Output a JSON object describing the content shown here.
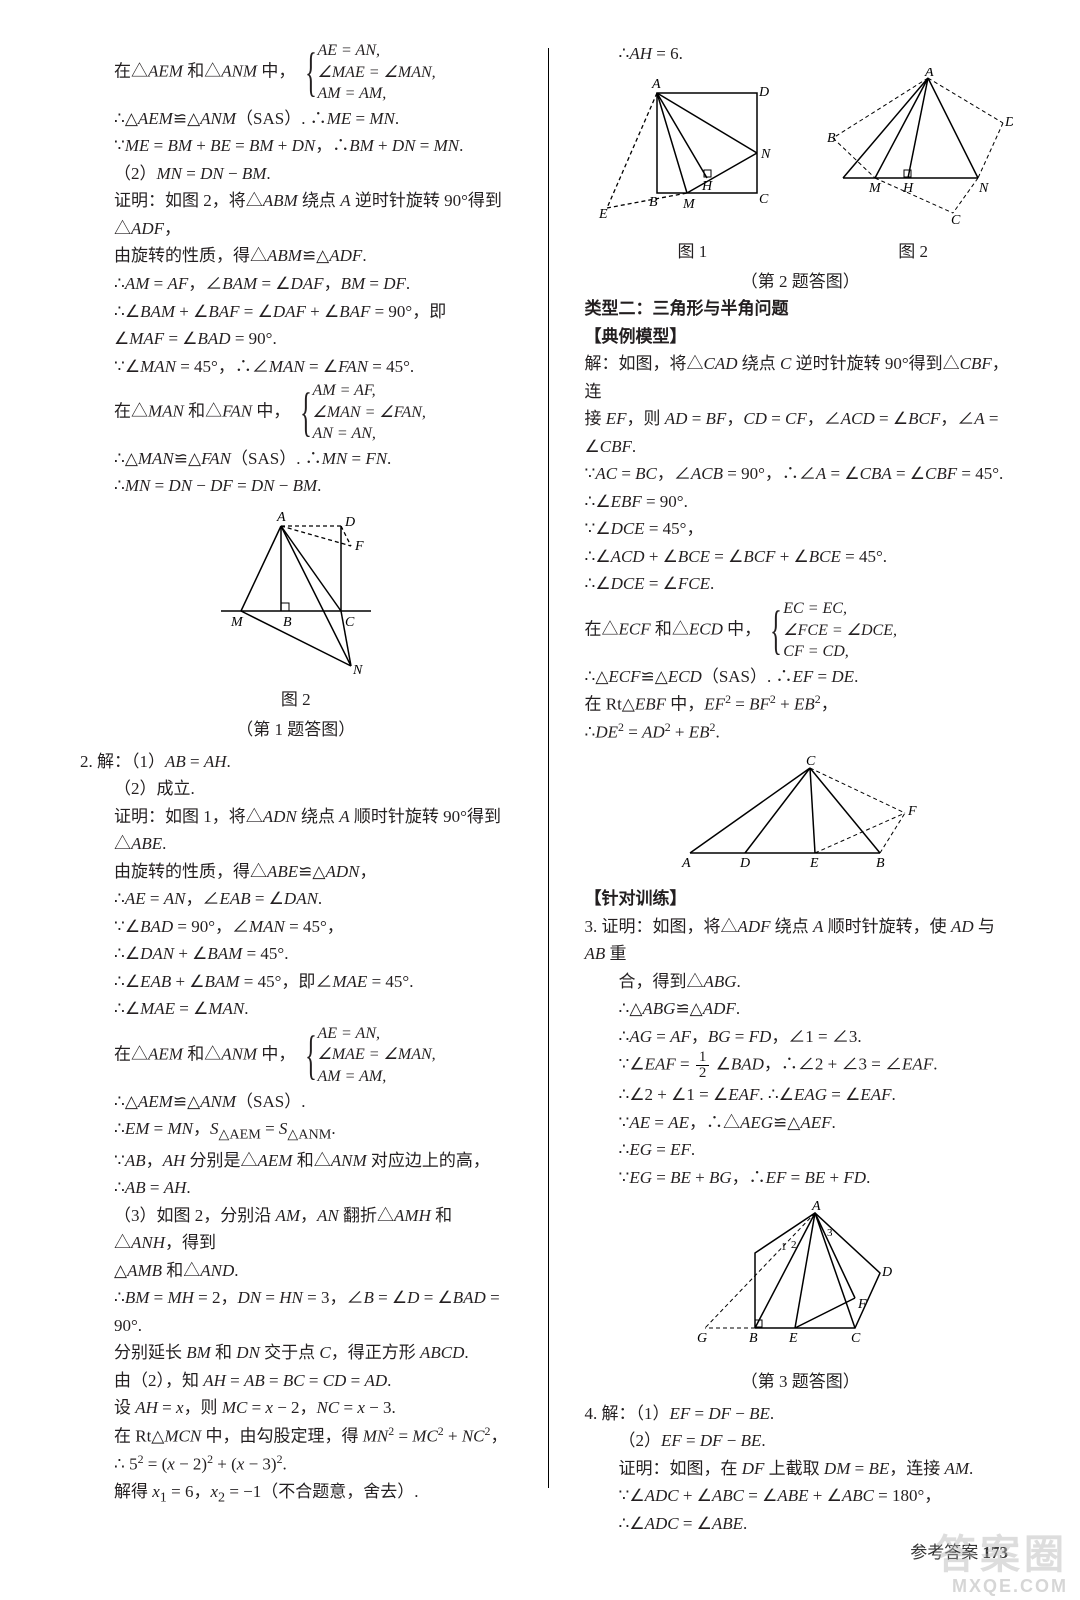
{
  "footer": {
    "label": "参考答案",
    "page": "173"
  },
  "watermark": {
    "main": "答案圈",
    "sub": "MXQE.COM"
  },
  "left": {
    "l1_pre": "在△<span class='it'>AEM</span> 和△<span class='it'>ANM</span> 中，",
    "brace1": [
      "AE = AN,",
      "∠MAE = ∠MAN,",
      "AM = AM,"
    ],
    "l2": "∴△<span class='it'>AEM</span>≌△<span class='it'>ANM</span>（SAS）. ∴<span class='it'>ME</span> = <span class='it'>MN</span>.",
    "l3": "∵<span class='it'>ME</span> = <span class='it'>BM</span> + <span class='it'>BE</span> = <span class='it'>BM</span> + <span class='it'>DN</span>，∴<span class='it'>BM</span> + <span class='it'>DN</span> = <span class='it'>MN</span>.",
    "l4": "（2）<span class='it'>MN</span> = <span class='it'>DN</span> − <span class='it'>BM</span>.",
    "l5": "证明：如图 2，将△<span class='it'>ABM</span> 绕点 <span class='it'>A</span> 逆时针旋转 90°得到△<span class='it'>ADF</span>，",
    "l6": "由旋转的性质，得△<span class='it'>ABM</span>≌△<span class='it'>ADF</span>.",
    "l7": "∴<span class='it'>AM</span> = <span class='it'>AF</span>，∠<span class='it'>BAM</span> = ∠<span class='it'>DAF</span>，<span class='it'>BM</span> = <span class='it'>DF</span>.",
    "l8": "∴∠<span class='it'>BAM</span> + ∠<span class='it'>BAF</span> = ∠<span class='it'>DAF</span> + ∠<span class='it'>BAF</span> = 90°，即",
    "l9": "∠<span class='it'>MAF</span> = ∠<span class='it'>BAD</span> = 90°.",
    "l10": "∵∠<span class='it'>MAN</span> = 45°，∴∠<span class='it'>MAN</span> = ∠<span class='it'>FAN</span> = 45°.",
    "l11_pre": "在△<span class='it'>MAN</span> 和△<span class='it'>FAN</span> 中，",
    "brace2": [
      "AM = AF,",
      "∠MAN = ∠FAN,",
      "AN = AN,"
    ],
    "l12": "∴△<span class='it'>MAN</span>≌△<span class='it'>FAN</span>（SAS）. ∴<span class='it'>MN</span> = <span class='it'>FN</span>.",
    "l13": "∴<span class='it'>MN</span> = <span class='it'>DN</span> − <span class='it'>DF</span> = <span class='it'>DN</span> − <span class='it'>BM</span>.",
    "fig1_label": "图 2",
    "fig1_cap": "（第 1 题答图）",
    "l14": "2. 解：（1）<span class='it'>AB</span> = <span class='it'>AH</span>.",
    "l15": "（2）成立.",
    "l16": "证明：如图 1，将△<span class='it'>ADN</span> 绕点 <span class='it'>A</span> 顺时针旋转 90°得到△<span class='it'>ABE</span>.",
    "l17": "由旋转的性质，得△<span class='it'>ABE</span>≌△<span class='it'>ADN</span>，",
    "l18": "∴<span class='it'>AE</span> = <span class='it'>AN</span>，∠<span class='it'>EAB</span> = ∠<span class='it'>DAN</span>.",
    "l19": "∵∠<span class='it'>BAD</span> = 90°，∠<span class='it'>MAN</span> = 45°，",
    "l20": "∴∠<span class='it'>DAN</span> + ∠<span class='it'>BAM</span> = 45°.",
    "l21": "∴∠<span class='it'>EAB</span> + ∠<span class='it'>BAM</span> = 45°，即∠<span class='it'>MAE</span> = 45°.",
    "l22": "∴∠<span class='it'>MAE</span> = ∠<span class='it'>MAN</span>.",
    "l23_pre": "在△<span class='it'>AEM</span> 和△<span class='it'>ANM</span> 中，",
    "brace3": [
      "AE = AN,",
      "∠MAE = ∠MAN,",
      "AM = AM,"
    ],
    "l24": "∴△<span class='it'>AEM</span>≌△<span class='it'>ANM</span>（SAS）.",
    "l25": "∴<span class='it'>EM</span> = <span class='it'>MN</span>，<span class='it'>S</span><sub>△AEM</sub> = <span class='it'>S</span><sub>△ANM</sub>.",
    "l26": "∵<span class='it'>AB</span>，<span class='it'>AH</span> 分别是△<span class='it'>AEM</span> 和△<span class='it'>ANM</span> 对应边上的高，",
    "l27": "∴<span class='it'>AB</span> = <span class='it'>AH</span>.",
    "l28": "（3）如图 2，分别沿 <span class='it'>AM</span>，<span class='it'>AN</span> 翻折△<span class='it'>AMH</span> 和△<span class='it'>ANH</span>，得到",
    "l29": "△<span class='it'>AMB</span> 和△<span class='it'>AND</span>.",
    "l30": "∴<span class='it'>BM</span> = <span class='it'>MH</span> = 2，<span class='it'>DN</span> = <span class='it'>HN</span> = 3，∠<span class='it'>B</span> = ∠<span class='it'>D</span> = ∠<span class='it'>BAD</span> = 90°.",
    "l31": "分别延长 <span class='it'>BM</span> 和 <span class='it'>DN</span> 交于点 <span class='it'>C</span>，得正方形 <span class='it'>ABCD</span>.",
    "l32": "由（2），知 <span class='it'>AH</span> = <span class='it'>AB</span> = <span class='it'>BC</span> = <span class='it'>CD</span> = <span class='it'>AD</span>.",
    "l33": "设 <span class='it'>AH</span> = <span class='it'>x</span>，则 <span class='it'>MC</span> = <span class='it'>x</span> − 2，<span class='it'>NC</span> = <span class='it'>x</span> − 3.",
    "l34": "在 Rt△<span class='it'>MCN</span> 中，由勾股定理，得 <span class='it'>MN</span><sup>2</sup> = <span class='it'>MC</span><sup>2</sup> + <span class='it'>NC</span><sup>2</sup>，",
    "l35": "∴ 5<sup>2</sup> = (<span class='it'>x</span> − 2)<sup>2</sup> + (<span class='it'>x</span> − 3)<sup>2</sup>.",
    "l36": "解得 <span class='it'>x</span><sub>1</sub> = 6，<span class='it'>x</span><sub>2</sub> = −1（不合题意，舍去）."
  },
  "right": {
    "r1": "∴<span class='it'>AH</span> = 6.",
    "figA_label": "图 1",
    "figB_label": "图 2",
    "figAB_cap": "（第 2 题答图）",
    "r_head1": "类型二：三角形与半角问题",
    "r_head2": "【典例模型】",
    "r2": "解：如图，将△<span class='it'>CAD</span> 绕点 <span class='it'>C</span> 逆时针旋转 90°得到△<span class='it'>CBF</span>，连",
    "r3": "接 <span class='it'>EF</span>，则 <span class='it'>AD</span> = <span class='it'>BF</span>，<span class='it'>CD</span> = <span class='it'>CF</span>，∠<span class='it'>ACD</span> = ∠<span class='it'>BCF</span>，∠<span class='it'>A</span> = ∠<span class='it'>CBF</span>.",
    "r4": "∵<span class='it'>AC</span> = <span class='it'>BC</span>，∠<span class='it'>ACB</span> = 90°，∴∠<span class='it'>A</span> = ∠<span class='it'>CBA</span> = ∠<span class='it'>CBF</span> = 45°.",
    "r5": "∴∠<span class='it'>EBF</span> = 90°.",
    "r6": "∵∠<span class='it'>DCE</span> = 45°，",
    "r7": "∴∠<span class='it'>ACD</span> + ∠<span class='it'>BCE</span> = ∠<span class='it'>BCF</span> + ∠<span class='it'>BCE</span> = 45°.",
    "r8": "∴∠<span class='it'>DCE</span> = ∠<span class='it'>FCE</span>.",
    "r9_pre": "在△<span class='it'>ECF</span> 和△<span class='it'>ECD</span> 中，",
    "brace4": [
      "EC = EC,",
      "∠FCE = ∠DCE,",
      "CF = CD,"
    ],
    "r10": "∴△<span class='it'>ECF</span>≌△<span class='it'>ECD</span>（SAS）. ∴<span class='it'>EF</span> = <span class='it'>DE</span>.",
    "r11": "在 Rt△<span class='it'>EBF</span> 中，<span class='it'>EF</span><sup>2</sup> = <span class='it'>BF</span><sup>2</sup> + <span class='it'>EB</span><sup>2</sup>，",
    "r12": "∴<span class='it'>DE</span><sup>2</sup> = <span class='it'>AD</span><sup>2</sup> + <span class='it'>EB</span><sup>2</sup>.",
    "r_head3": "【针对训练】",
    "r13": "3. 证明：如图，将△<span class='it'>ADF</span> 绕点 <span class='it'>A</span> 顺时针旋转，使 <span class='it'>AD</span> 与 <span class='it'>AB</span> 重",
    "r14": "合，得到△<span class='it'>ABG</span>.",
    "r15": "∴△<span class='it'>ABG</span>≌△<span class='it'>ADF</span>.",
    "r16": "∴<span class='it'>AG</span> = <span class='it'>AF</span>，<span class='it'>BG</span> = <span class='it'>FD</span>，∠1 = ∠3.",
    "r17_pre": "∵∠<span class='it'>EAF</span> = ",
    "r17_frac_n": "1",
    "r17_frac_d": "2",
    "r17_post": "∠<span class='it'>BAD</span>，∴∠2 + ∠3 = ∠<span class='it'>EAF</span>.",
    "r18": "∴∠2 + ∠1 = ∠<span class='it'>EAF</span>. ∴∠<span class='it'>EAG</span> = ∠<span class='it'>EAF</span>.",
    "r19": "∵<span class='it'>AE</span> = <span class='it'>AE</span>，∴△<span class='it'>AEG</span>≌△<span class='it'>AEF</span>.",
    "r20": "∴<span class='it'>EG</span> = <span class='it'>EF</span>.",
    "r21": "∵<span class='it'>EG</span> = <span class='it'>BE</span> + <span class='it'>BG</span>，∴<span class='it'>EF</span> = <span class='it'>BE</span> + <span class='it'>FD</span>.",
    "fig3_cap": "（第 3 题答图）",
    "r22": "4. 解：（1）<span class='it'>EF</span> = <span class='it'>DF</span> − <span class='it'>BE</span>.",
    "r23": "（2）<span class='it'>EF</span> = <span class='it'>DF</span> − <span class='it'>BE</span>.",
    "r24": "证明：如图，在 <span class='it'>DF</span> 上截取 <span class='it'>DM</span> = <span class='it'>BE</span>，连接 <span class='it'>AM</span>.",
    "r25": "∵∠<span class='it'>ADC</span> + ∠<span class='it'>ABC</span> = ∠<span class='it'>ABE</span> + ∠<span class='it'>ABC</span> = 180°，",
    "r26": "∴∠<span class='it'>ADC</span> = ∠<span class='it'>ABE</span>."
  },
  "svgColors": {
    "solid": "#000000",
    "dash": "4,3"
  }
}
